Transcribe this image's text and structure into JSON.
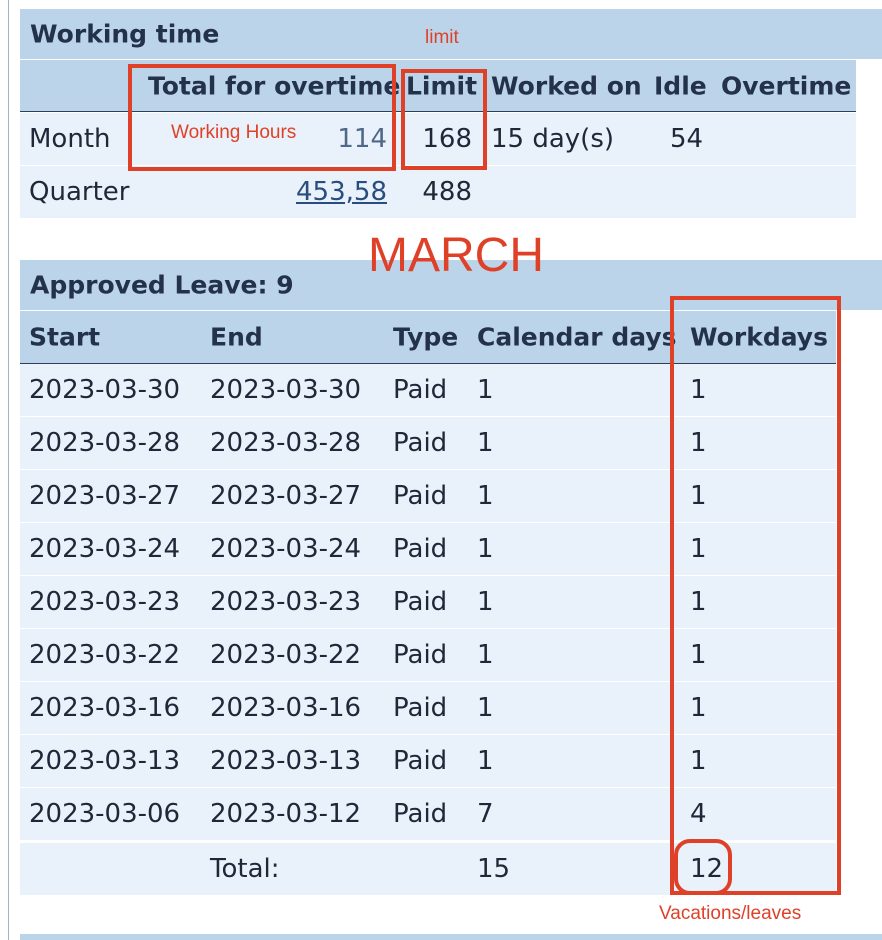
{
  "working_time": {
    "title": "Working time",
    "headers": [
      "Total for overtime",
      "Limit",
      "Worked on",
      "Idle",
      "Overtime"
    ],
    "rows": [
      {
        "label": "Month",
        "total": "114",
        "limit": "168",
        "worked_on": "15 day(s)",
        "idle": "54",
        "overtime": ""
      },
      {
        "label": "Quarter",
        "total": "453,58",
        "limit": "488",
        "worked_on": "",
        "idle": "",
        "overtime": ""
      }
    ]
  },
  "approved_leave": {
    "title": "Approved Leave: 9",
    "headers": [
      "Start",
      "End",
      "Type",
      "Calendar days",
      "Workdays"
    ],
    "rows": [
      {
        "start": "2023-03-30",
        "end": "2023-03-30",
        "type": "Paid",
        "calendar_days": "1",
        "workdays": "1"
      },
      {
        "start": "2023-03-28",
        "end": "2023-03-28",
        "type": "Paid",
        "calendar_days": "1",
        "workdays": "1"
      },
      {
        "start": "2023-03-27",
        "end": "2023-03-27",
        "type": "Paid",
        "calendar_days": "1",
        "workdays": "1"
      },
      {
        "start": "2023-03-24",
        "end": "2023-03-24",
        "type": "Paid",
        "calendar_days": "1",
        "workdays": "1"
      },
      {
        "start": "2023-03-23",
        "end": "2023-03-23",
        "type": "Paid",
        "calendar_days": "1",
        "workdays": "1"
      },
      {
        "start": "2023-03-22",
        "end": "2023-03-22",
        "type": "Paid",
        "calendar_days": "1",
        "workdays": "1"
      },
      {
        "start": "2023-03-16",
        "end": "2023-03-16",
        "type": "Paid",
        "calendar_days": "1",
        "workdays": "1"
      },
      {
        "start": "2023-03-13",
        "end": "2023-03-13",
        "type": "Paid",
        "calendar_days": "1",
        "workdays": "1"
      },
      {
        "start": "2023-03-06",
        "end": "2023-03-12",
        "type": "Paid",
        "calendar_days": "7",
        "workdays": "4"
      }
    ],
    "total": {
      "label": "Total:",
      "calendar_days": "15",
      "workdays": "12"
    }
  },
  "annotations": {
    "limit": "limit",
    "working_hours": "Working Hours",
    "month": "MARCH",
    "vacations": "Vacations/leaves"
  },
  "colors": {
    "header_bg": "#bcd4ea",
    "row_bg": "#e9f1fa",
    "annotation_red": "#df4128",
    "link_blue": "#284d7e"
  }
}
